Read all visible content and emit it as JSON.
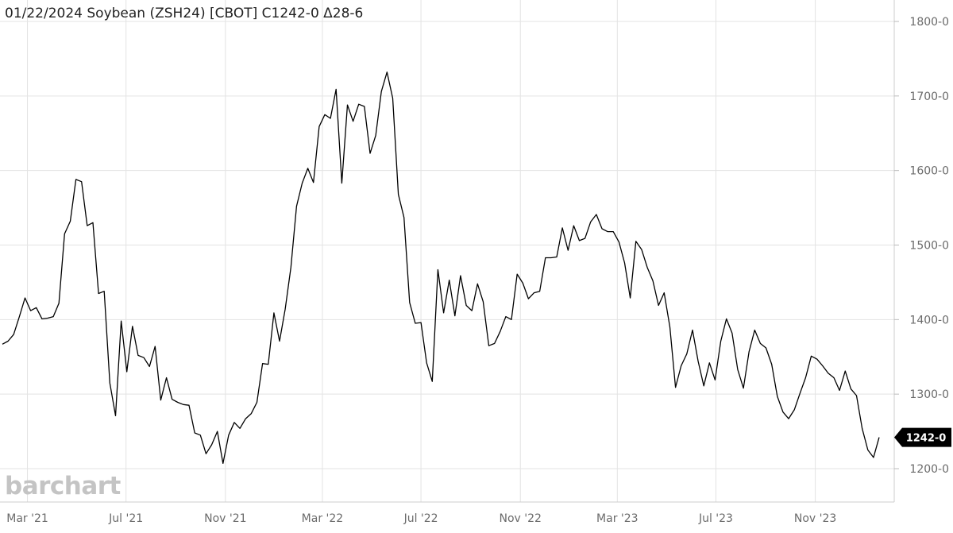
{
  "title": "01/22/2024 Soybean (ZSH24) [CBOT] C1242-0 Δ28-6",
  "watermark": "barchart",
  "chart_data": {
    "type": "line",
    "title": "01/22/2024 Soybean (ZSH24) [CBOT] C1242-0 Δ28-6",
    "xlabel": "",
    "ylabel": "",
    "x_ticks": [
      {
        "label": "Mar '21",
        "date": "2021-03-01"
      },
      {
        "label": "Jul '21",
        "date": "2021-07-01"
      },
      {
        "label": "Nov '21",
        "date": "2021-11-01"
      },
      {
        "label": "Mar '22",
        "date": "2022-03-01"
      },
      {
        "label": "Jul '22",
        "date": "2022-07-01"
      },
      {
        "label": "Nov '22",
        "date": "2022-11-01"
      },
      {
        "label": "Mar '23",
        "date": "2023-03-01"
      },
      {
        "label": "Jul '23",
        "date": "2023-07-01"
      },
      {
        "label": "Nov '23",
        "date": "2023-11-01"
      }
    ],
    "y_ticks": [
      {
        "value": 1200,
        "label": "1200-0"
      },
      {
        "value": 1300,
        "label": "1300-0"
      },
      {
        "value": 1400,
        "label": "1400-0"
      },
      {
        "value": 1500,
        "label": "1500-0"
      },
      {
        "value": 1600,
        "label": "1600-0"
      },
      {
        "value": 1700,
        "label": "1700-0"
      },
      {
        "value": 1800,
        "label": "1800-0"
      }
    ],
    "xlim": [
      "2021-01-29",
      "2024-02-15"
    ],
    "ylim": [
      1150,
      1820
    ],
    "grid": true,
    "line_color": "#000000",
    "last_value": {
      "value": 1242,
      "label": "1242-0"
    },
    "series": [
      {
        "x": [
          "2021-01-29",
          "2021-02-05",
          "2021-02-12",
          "2021-02-19",
          "2021-02-26",
          "2021-03-05",
          "2021-03-12",
          "2021-03-19",
          "2021-03-26",
          "2021-04-02",
          "2021-04-09",
          "2021-04-16",
          "2021-04-23",
          "2021-04-30",
          "2021-05-07",
          "2021-05-14",
          "2021-05-21",
          "2021-05-28",
          "2021-06-04",
          "2021-06-11",
          "2021-06-18",
          "2021-06-25",
          "2021-07-02",
          "2021-07-09",
          "2021-07-16",
          "2021-07-23",
          "2021-07-30",
          "2021-08-06",
          "2021-08-13",
          "2021-08-20",
          "2021-08-27",
          "2021-09-03",
          "2021-09-10",
          "2021-09-17",
          "2021-09-24",
          "2021-10-01",
          "2021-10-08",
          "2021-10-15",
          "2021-10-22",
          "2021-10-29",
          "2021-11-05",
          "2021-11-12",
          "2021-11-19",
          "2021-11-26",
          "2021-12-03",
          "2021-12-10",
          "2021-12-17",
          "2021-12-24",
          "2021-12-31",
          "2022-01-07",
          "2022-01-14",
          "2022-01-21",
          "2022-01-28",
          "2022-02-04",
          "2022-02-11",
          "2022-02-18",
          "2022-02-25",
          "2022-03-04",
          "2022-03-11",
          "2022-03-18",
          "2022-03-25",
          "2022-04-01",
          "2022-04-08",
          "2022-04-15",
          "2022-04-22",
          "2022-04-29",
          "2022-05-06",
          "2022-05-13",
          "2022-05-20",
          "2022-05-27",
          "2022-06-03",
          "2022-06-10",
          "2022-06-17",
          "2022-06-24",
          "2022-07-01",
          "2022-07-08",
          "2022-07-15",
          "2022-07-22",
          "2022-07-29",
          "2022-08-05",
          "2022-08-12",
          "2022-08-19",
          "2022-08-26",
          "2022-09-02",
          "2022-09-09",
          "2022-09-16",
          "2022-09-23",
          "2022-09-30",
          "2022-10-07",
          "2022-10-14",
          "2022-10-21",
          "2022-10-28",
          "2022-11-04",
          "2022-11-11",
          "2022-11-18",
          "2022-11-25",
          "2022-12-02",
          "2022-12-09",
          "2022-12-16",
          "2022-12-23",
          "2022-12-30",
          "2023-01-06",
          "2023-01-13",
          "2023-01-20",
          "2023-01-27",
          "2023-02-03",
          "2023-02-10",
          "2023-02-17",
          "2023-02-24",
          "2023-03-03",
          "2023-03-10",
          "2023-03-17",
          "2023-03-24",
          "2023-03-31",
          "2023-04-07",
          "2023-04-14",
          "2023-04-21",
          "2023-04-28",
          "2023-05-05",
          "2023-05-12",
          "2023-05-19",
          "2023-05-26",
          "2023-06-02",
          "2023-06-09",
          "2023-06-16",
          "2023-06-23",
          "2023-06-30",
          "2023-07-07",
          "2023-07-14",
          "2023-07-21",
          "2023-07-28",
          "2023-08-04",
          "2023-08-11",
          "2023-08-18",
          "2023-08-25",
          "2023-09-01",
          "2023-09-08",
          "2023-09-15",
          "2023-09-22",
          "2023-09-29",
          "2023-10-06",
          "2023-10-13",
          "2023-10-20",
          "2023-10-27",
          "2023-11-03",
          "2023-11-10",
          "2023-11-17",
          "2023-11-24",
          "2023-12-01",
          "2023-12-08",
          "2023-12-15",
          "2023-12-22",
          "2023-12-29",
          "2024-01-05",
          "2024-01-12",
          "2024-01-19"
        ],
        "values": [
          1367,
          1371,
          1380,
          1404,
          1429,
          1412,
          1416,
          1401,
          1402,
          1404,
          1422,
          1515,
          1532,
          1588,
          1585,
          1526,
          1530,
          1435,
          1438,
          1315,
          1271,
          1398,
          1330,
          1391,
          1352,
          1349,
          1337,
          1364,
          1292,
          1322,
          1293,
          1289,
          1286,
          1285,
          1248,
          1245,
          1220,
          1232,
          1250,
          1207,
          1245,
          1262,
          1254,
          1267,
          1274,
          1289,
          1341,
          1340,
          1409,
          1371,
          1414,
          1470,
          1552,
          1583,
          1603,
          1584,
          1659,
          1675,
          1670,
          1709,
          1583,
          1688,
          1666,
          1689,
          1686,
          1623,
          1647,
          1706,
          1732,
          1697,
          1568,
          1537,
          1423,
          1395,
          1396,
          1342,
          1317,
          1467,
          1409,
          1453,
          1405,
          1459,
          1419,
          1412,
          1448,
          1424,
          1365,
          1368,
          1384,
          1404,
          1400,
          1461,
          1449,
          1428,
          1436,
          1438,
          1483,
          1483,
          1484,
          1523,
          1493,
          1526,
          1506,
          1509,
          1531,
          1541,
          1522,
          1518,
          1518,
          1504,
          1476,
          1429,
          1505,
          1494,
          1470,
          1452,
          1419,
          1436,
          1390,
          1309,
          1338,
          1354,
          1386,
          1344,
          1311,
          1342,
          1319,
          1371,
          1401,
          1382,
          1333,
          1308,
          1357,
          1386,
          1368,
          1362,
          1340,
          1297,
          1276,
          1267,
          1279,
          1301,
          1322,
          1351,
          1347,
          1338,
          1328,
          1322,
          1305,
          1331,
          1307,
          1298,
          1254,
          1225,
          1215,
          1242
        ]
      }
    ]
  }
}
